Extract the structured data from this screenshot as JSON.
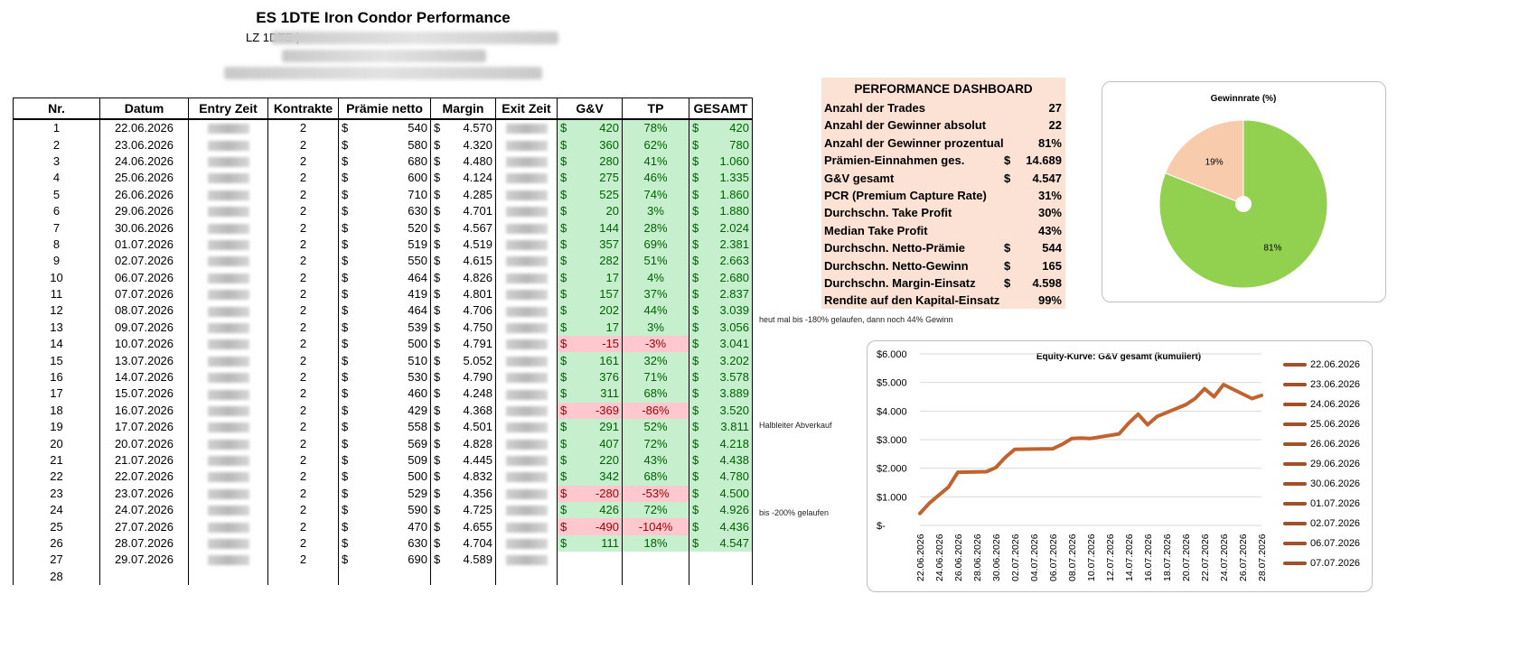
{
  "header": {
    "title": "ES 1DTE Iron Condor Performance",
    "subtitle_prefix": "LZ 1DTE |"
  },
  "table": {
    "columns": [
      "Nr.",
      "Datum",
      "Entry Zeit",
      "Kontrakte",
      "Prämie netto",
      "Margin",
      "Exit Zeit",
      "G&V",
      "TP",
      "GESAMT"
    ],
    "currency": "$",
    "rows": [
      {
        "nr": "1",
        "datum": "22.06.2026",
        "kontrakte": "2",
        "praemie": "540",
        "margin": "4.570",
        "gv": "420",
        "tp": "78%",
        "gesamt": "420",
        "neg": false
      },
      {
        "nr": "2",
        "datum": "23.06.2026",
        "kontrakte": "2",
        "praemie": "580",
        "margin": "4.320",
        "gv": "360",
        "tp": "62%",
        "gesamt": "780",
        "neg": false
      },
      {
        "nr": "3",
        "datum": "24.06.2026",
        "kontrakte": "2",
        "praemie": "680",
        "margin": "4.480",
        "gv": "280",
        "tp": "41%",
        "gesamt": "1.060",
        "neg": false
      },
      {
        "nr": "4",
        "datum": "25.06.2026",
        "kontrakte": "2",
        "praemie": "600",
        "margin": "4.124",
        "gv": "275",
        "tp": "46%",
        "gesamt": "1.335",
        "neg": false
      },
      {
        "nr": "5",
        "datum": "26.06.2026",
        "kontrakte": "2",
        "praemie": "710",
        "margin": "4.285",
        "gv": "525",
        "tp": "74%",
        "gesamt": "1.860",
        "neg": false
      },
      {
        "nr": "6",
        "datum": "29.06.2026",
        "kontrakte": "2",
        "praemie": "630",
        "margin": "4.701",
        "gv": "20",
        "tp": "3%",
        "gesamt": "1.880",
        "neg": false
      },
      {
        "nr": "7",
        "datum": "30.06.2026",
        "kontrakte": "2",
        "praemie": "520",
        "margin": "4.567",
        "gv": "144",
        "tp": "28%",
        "gesamt": "2.024",
        "neg": false
      },
      {
        "nr": "8",
        "datum": "01.07.2026",
        "kontrakte": "2",
        "praemie": "519",
        "margin": "4.519",
        "gv": "357",
        "tp": "69%",
        "gesamt": "2.381",
        "neg": false
      },
      {
        "nr": "9",
        "datum": "02.07.2026",
        "kontrakte": "2",
        "praemie": "550",
        "margin": "4.615",
        "gv": "282",
        "tp": "51%",
        "gesamt": "2.663",
        "neg": false
      },
      {
        "nr": "10",
        "datum": "06.07.2026",
        "kontrakte": "2",
        "praemie": "464",
        "margin": "4.826",
        "gv": "17",
        "tp": "4%",
        "gesamt": "2.680",
        "neg": false
      },
      {
        "nr": "11",
        "datum": "07.07.2026",
        "kontrakte": "2",
        "praemie": "419",
        "margin": "4.801",
        "gv": "157",
        "tp": "37%",
        "gesamt": "2.837",
        "neg": false
      },
      {
        "nr": "12",
        "datum": "08.07.2026",
        "kontrakte": "2",
        "praemie": "464",
        "margin": "4.706",
        "gv": "202",
        "tp": "44%",
        "gesamt": "3.039",
        "neg": false
      },
      {
        "nr": "13",
        "datum": "09.07.2026",
        "kontrakte": "2",
        "praemie": "539",
        "margin": "4.750",
        "gv": "17",
        "tp": "3%",
        "gesamt": "3.056",
        "neg": false
      },
      {
        "nr": "14",
        "datum": "10.07.2026",
        "kontrakte": "2",
        "praemie": "500",
        "margin": "4.791",
        "gv": "-15",
        "tp": "-3%",
        "gesamt": "3.041",
        "neg": true
      },
      {
        "nr": "15",
        "datum": "13.07.2026",
        "kontrakte": "2",
        "praemie": "510",
        "margin": "5.052",
        "gv": "161",
        "tp": "32%",
        "gesamt": "3.202",
        "neg": false
      },
      {
        "nr": "16",
        "datum": "14.07.2026",
        "kontrakte": "2",
        "praemie": "530",
        "margin": "4.790",
        "gv": "376",
        "tp": "71%",
        "gesamt": "3.578",
        "neg": false
      },
      {
        "nr": "17",
        "datum": "15.07.2026",
        "kontrakte": "2",
        "praemie": "460",
        "margin": "4.248",
        "gv": "311",
        "tp": "68%",
        "gesamt": "3.889",
        "neg": false
      },
      {
        "nr": "18",
        "datum": "16.07.2026",
        "kontrakte": "2",
        "praemie": "429",
        "margin": "4.368",
        "gv": "-369",
        "tp": "-86%",
        "gesamt": "3.520",
        "neg": true
      },
      {
        "nr": "19",
        "datum": "17.07.2026",
        "kontrakte": "2",
        "praemie": "558",
        "margin": "4.501",
        "gv": "291",
        "tp": "52%",
        "gesamt": "3.811",
        "neg": false
      },
      {
        "nr": "20",
        "datum": "20.07.2026",
        "kontrakte": "2",
        "praemie": "569",
        "margin": "4.828",
        "gv": "407",
        "tp": "72%",
        "gesamt": "4.218",
        "neg": false
      },
      {
        "nr": "21",
        "datum": "21.07.2026",
        "kontrakte": "2",
        "praemie": "509",
        "margin": "4.445",
        "gv": "220",
        "tp": "43%",
        "gesamt": "4.438",
        "neg": false
      },
      {
        "nr": "22",
        "datum": "22.07.2026",
        "kontrakte": "2",
        "praemie": "500",
        "margin": "4.832",
        "gv": "342",
        "tp": "68%",
        "gesamt": "4.780",
        "neg": false
      },
      {
        "nr": "23",
        "datum": "23.07.2026",
        "kontrakte": "2",
        "praemie": "529",
        "margin": "4.356",
        "gv": "-280",
        "tp": "-53%",
        "gesamt": "4.500",
        "neg": true
      },
      {
        "nr": "24",
        "datum": "24.07.2026",
        "kontrakte": "2",
        "praemie": "590",
        "margin": "4.725",
        "gv": "426",
        "tp": "72%",
        "gesamt": "4.926",
        "neg": false
      },
      {
        "nr": "25",
        "datum": "27.07.2026",
        "kontrakte": "2",
        "praemie": "470",
        "margin": "4.655",
        "gv": "-490",
        "tp": "-104%",
        "gesamt": "4.436",
        "neg": true
      },
      {
        "nr": "26",
        "datum": "28.07.2026",
        "kontrakte": "2",
        "praemie": "630",
        "margin": "4.704",
        "gv": "111",
        "tp": "18%",
        "gesamt": "4.547",
        "neg": false
      },
      {
        "nr": "27",
        "datum": "29.07.2026",
        "kontrakte": "2",
        "praemie": "690",
        "margin": "4.589",
        "gv": "",
        "tp": "",
        "gesamt": "",
        "neg": false
      },
      {
        "nr": "28",
        "datum": "",
        "kontrakte": "",
        "praemie": "",
        "margin": "",
        "gv": "",
        "tp": "",
        "gesamt": "",
        "neg": false
      }
    ]
  },
  "notes": [
    {
      "row": 12,
      "text": "heut mal bis -180% gelaufen, dann noch 44% Gewinn"
    },
    {
      "row": 18,
      "text": "Halbleiter Abverkauf"
    },
    {
      "row": 23,
      "text": "bis -200% gelaufen"
    }
  ],
  "dashboard": {
    "title": "PERFORMANCE DASHBOARD",
    "rows": [
      {
        "label": "Anzahl der Trades",
        "cur": "",
        "value": "27"
      },
      {
        "label": "Anzahl der Gewinner absolut",
        "cur": "",
        "value": "22"
      },
      {
        "label": "Anzahl der Gewinner prozentual",
        "cur": "",
        "value": "81%"
      },
      {
        "label": "Prämien-Einnahmen ges.",
        "cur": "$",
        "value": "14.689"
      },
      {
        "label": "G&V gesamt",
        "cur": "$",
        "value": "4.547"
      },
      {
        "label": "PCR (Premium Capture Rate)",
        "cur": "",
        "value": "31%"
      },
      {
        "label": "Durchschn. Take Profit",
        "cur": "",
        "value": "30%"
      },
      {
        "label": "Median Take Profit",
        "cur": "",
        "value": "43%"
      },
      {
        "label": "Durchschn. Netto-Prämie",
        "cur": "$",
        "value": "544"
      },
      {
        "label": "Durchschn. Netto-Gewinn",
        "cur": "$",
        "value": "165"
      },
      {
        "label": "Durchschn. Margin-Einsatz",
        "cur": "$",
        "value": "4.598"
      },
      {
        "label": "Rendite auf den Kapital-Einsatz",
        "cur": "",
        "value": "99%"
      }
    ]
  },
  "chart_data": [
    {
      "type": "pie",
      "title": "Gewinnrate (%)",
      "labels": [
        "81%",
        "19%"
      ],
      "values": [
        81,
        19
      ],
      "colors": [
        "#92d050",
        "#f8cbad"
      ]
    },
    {
      "type": "line",
      "title": "Equity-Kurve: G&V gesamt (kumuliert)",
      "x": [
        "22.06.2026",
        "23.06.2026",
        "24.06.2026",
        "25.06.2026",
        "26.06.2026",
        "29.06.2026",
        "30.06.2026",
        "01.07.2026",
        "02.07.2026",
        "06.07.2026",
        "07.07.2026",
        "08.07.2026",
        "09.07.2026",
        "10.07.2026",
        "13.07.2026",
        "14.07.2026",
        "15.07.2026",
        "16.07.2026",
        "17.07.2026",
        "20.07.2026",
        "21.07.2026",
        "22.07.2026",
        "23.07.2026",
        "24.07.2026",
        "27.07.2026",
        "28.07.2026"
      ],
      "x_tick_labels": [
        "22.06.2026",
        "24.06.2026",
        "26.06.2026",
        "28.06.2026",
        "30.06.2026",
        "02.07.2026",
        "04.07.2026",
        "06.07.2026",
        "08.07.2026",
        "10.07.2026",
        "12.07.2026",
        "14.07.2026",
        "16.07.2026",
        "18.07.2026",
        "20.07.2026",
        "22.07.2026",
        "24.07.2026",
        "26.07.2026",
        "28.07.2026"
      ],
      "x_range": [
        "22.06.2026",
        "28.07.2026"
      ],
      "y": [
        420,
        780,
        1060,
        1335,
        1860,
        1880,
        2024,
        2381,
        2663,
        2680,
        2837,
        3039,
        3056,
        3041,
        3202,
        3578,
        3889,
        3520,
        3811,
        4218,
        4438,
        4780,
        4500,
        4926,
        4436,
        4547
      ],
      "y_tick_labels": [
        "$-",
        "$1.000",
        "$2.000",
        "$3.000",
        "$4.000",
        "$5.000",
        "$6.000"
      ],
      "ylim": [
        0,
        6000
      ],
      "grid": true,
      "color": "#c0632f",
      "legend_position": "right",
      "legend": [
        "22.06.2026",
        "23.06.2026",
        "24.06.2026",
        "25.06.2026",
        "26.06.2026",
        "29.06.2026",
        "30.06.2026",
        "01.07.2026",
        "02.07.2026",
        "06.07.2026",
        "07.07.2026"
      ]
    }
  ]
}
